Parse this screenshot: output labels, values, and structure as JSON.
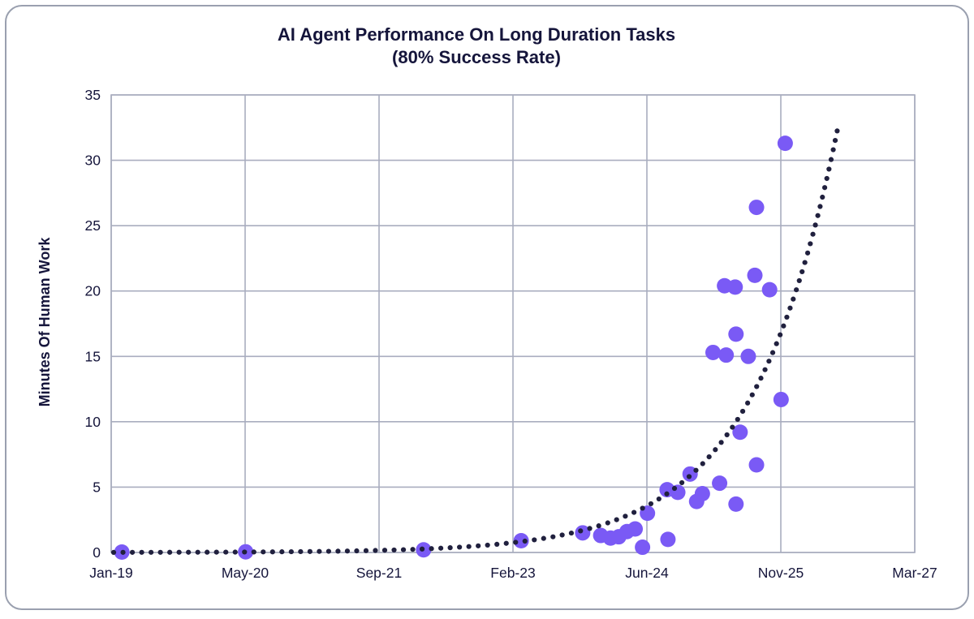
{
  "figure": {
    "title_line1": "AI Agent Performance On Long Duration Tasks",
    "title_line2": "(80% Success Rate)",
    "y_axis_title": "Minutes Of Human Work"
  },
  "chart_data": {
    "type": "scatter",
    "title": "AI Agent Performance On Long Duration Tasks (80% Success Rate)",
    "xlabel": "",
    "ylabel": "Minutes Of Human Work",
    "x_unit": "months since Jan-2019",
    "xlim_months": [
      0,
      98
    ],
    "ylim": [
      0,
      35
    ],
    "grid": true,
    "legend": false,
    "x_tick_months": [
      0,
      16.333,
      32.667,
      49,
      65.333,
      81.667,
      98
    ],
    "x_tick_labels": [
      "Jan-19",
      "May-20",
      "Sep-21",
      "Feb-23",
      "Jun-24",
      "Nov-25",
      "Mar-27"
    ],
    "y_ticks": [
      0,
      5,
      10,
      15,
      20,
      25,
      30,
      35
    ],
    "points": [
      {
        "m": 1.3,
        "v": 0.03
      },
      {
        "m": 16.4,
        "v": 0.05
      },
      {
        "m": 38.1,
        "v": 0.2
      },
      {
        "m": 50.0,
        "v": 0.9
      },
      {
        "m": 57.5,
        "v": 1.5
      },
      {
        "m": 59.7,
        "v": 1.3
      },
      {
        "m": 60.9,
        "v": 1.1
      },
      {
        "m": 61.9,
        "v": 1.2
      },
      {
        "m": 62.9,
        "v": 1.6
      },
      {
        "m": 63.9,
        "v": 1.8
      },
      {
        "m": 64.8,
        "v": 0.4
      },
      {
        "m": 65.4,
        "v": 3.0
      },
      {
        "m": 67.8,
        "v": 4.8
      },
      {
        "m": 67.9,
        "v": 1.0
      },
      {
        "m": 69.1,
        "v": 4.6
      },
      {
        "m": 70.6,
        "v": 6.0
      },
      {
        "m": 71.4,
        "v": 3.9
      },
      {
        "m": 72.1,
        "v": 4.5
      },
      {
        "m": 73.4,
        "v": 15.3
      },
      {
        "m": 74.2,
        "v": 5.3
      },
      {
        "m": 74.8,
        "v": 20.4
      },
      {
        "m": 75.0,
        "v": 15.1
      },
      {
        "m": 76.1,
        "v": 20.3
      },
      {
        "m": 76.2,
        "v": 16.7
      },
      {
        "m": 76.2,
        "v": 3.7
      },
      {
        "m": 76.7,
        "v": 9.2
      },
      {
        "m": 77.7,
        "v": 15.0
      },
      {
        "m": 78.5,
        "v": 21.2
      },
      {
        "m": 78.7,
        "v": 26.4
      },
      {
        "m": 78.7,
        "v": 6.7
      },
      {
        "m": 80.3,
        "v": 20.1
      },
      {
        "m": 81.7,
        "v": 11.7
      },
      {
        "m": 82.2,
        "v": 31.3
      }
    ],
    "trend": {
      "type": "exponential",
      "style": "dotted",
      "v0": 0.0072,
      "doubling_months": 7.3,
      "m_start": 0.3,
      "m_end": 88.6
    }
  },
  "style": {
    "point_color": "#7a5af5",
    "trend_color": "#20203e",
    "grid_color": "#a9adbf",
    "text_color": "#15153b",
    "border_color": "#9aa0af",
    "background": "#ffffff"
  }
}
